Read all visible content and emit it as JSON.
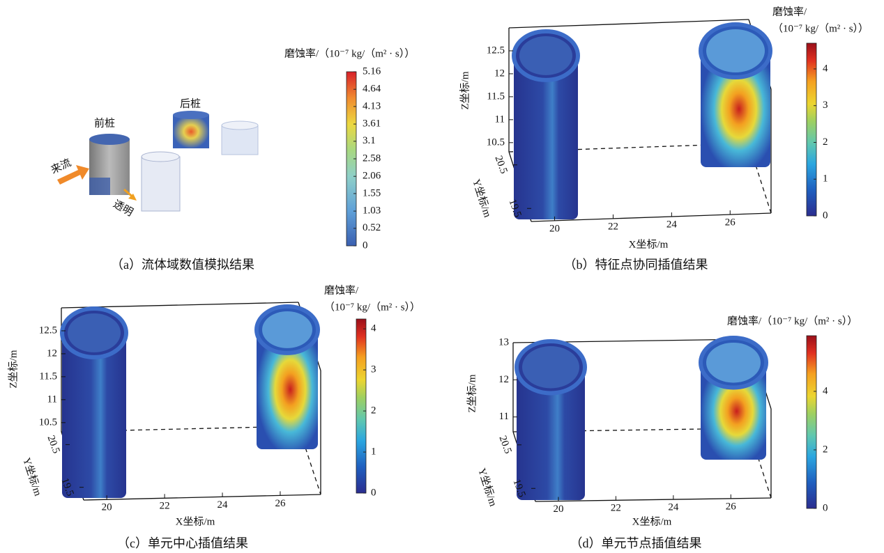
{
  "chart_data": [
    {
      "type": "illustration",
      "title": "（a）流体域数值模拟结果",
      "labels": [
        "前桩",
        "后桩",
        "来流",
        "透明"
      ],
      "colorbar_label": [
        "磨蚀率/（10⁻⁷ kg/（m² · s））"
      ],
      "clim": [
        0,
        5.16
      ],
      "cticks": [
        0,
        0.52,
        1.03,
        1.55,
        2.06,
        2.58,
        3.1,
        3.61,
        4.13,
        4.64,
        5.16
      ]
    },
    {
      "type": "surface3d",
      "title": "（b）特征点协同插值结果",
      "xlabel": "X坐标/m",
      "ylabel": "Y坐标/m",
      "zlabel": "Z坐标/m",
      "xlim": [
        19.2,
        27.4
      ],
      "ylim": [
        19.2,
        20.8
      ],
      "zlim": [
        10.3,
        13
      ],
      "xticks": [
        20,
        22,
        24,
        26
      ],
      "yticks": [
        19.5,
        20.5
      ],
      "zticks": [
        10.5,
        11.0,
        11.5,
        12.0,
        12.5
      ],
      "colorbar_label": [
        "磨蚀率/",
        "（10⁻⁷ kg/（m² · s））"
      ],
      "clim": [
        0,
        4.7
      ],
      "cticks": [
        0,
        1,
        2,
        3,
        4
      ]
    },
    {
      "type": "surface3d",
      "title": "（c）单元中心插值结果",
      "xlabel": "X坐标/m",
      "ylabel": "Y坐标/m",
      "zlabel": "Z坐标/m",
      "xlim": [
        19.2,
        27.4
      ],
      "ylim": [
        19.2,
        20.8
      ],
      "zlim": [
        10.3,
        13
      ],
      "xticks": [
        20,
        22,
        24,
        26
      ],
      "yticks": [
        19.5,
        20.5
      ],
      "zticks": [
        10.5,
        11.0,
        11.5,
        12.0,
        12.5
      ],
      "colorbar_label": [
        "磨蚀率/",
        "（10⁻⁷ kg/（m² · s））"
      ],
      "clim": [
        0,
        4.24
      ],
      "cticks": [
        0,
        1,
        2,
        3,
        4
      ]
    },
    {
      "type": "surface3d",
      "title": "（d）单元节点插值结果",
      "xlabel": "X坐标/m",
      "ylabel": "Y坐标/m",
      "zlabel": "Z坐标/m",
      "xlim": [
        19.2,
        27.4
      ],
      "ylim": [
        19.2,
        20.8
      ],
      "zlim": [
        10.6,
        13
      ],
      "xticks": [
        20,
        22,
        24,
        26
      ],
      "yticks": [
        19.5,
        20.5
      ],
      "zticks": [
        11,
        12,
        13
      ],
      "colorbar_label": [
        "磨蚀率/（10⁻⁷ kg/（m² · s））"
      ],
      "clim": [
        0,
        5.9
      ],
      "cticks": [
        0,
        2,
        4
      ]
    }
  ]
}
